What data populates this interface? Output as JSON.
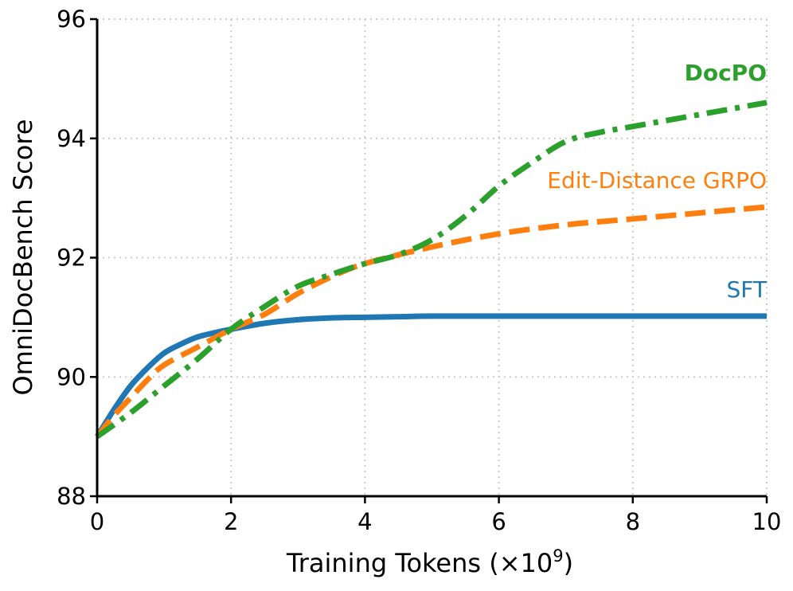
{
  "chart_data": {
    "type": "line",
    "title": "",
    "xlabel": "Training Tokens (×10",
    "xlabel_superscript": "9",
    "xlabel_suffix": ")",
    "ylabel": "OmniDocBench Score",
    "xlim": [
      0,
      10
    ],
    "ylim": [
      88,
      96
    ],
    "x_ticks": [
      0,
      2,
      4,
      6,
      8,
      10
    ],
    "y_ticks": [
      88,
      90,
      92,
      94,
      96
    ],
    "grid": true,
    "legend": "none",
    "series": [
      {
        "name": "SFT",
        "color": "#1f77b4",
        "style": "solid",
        "label_bold": false,
        "x": [
          0,
          0.25,
          0.5,
          0.75,
          1,
          1.25,
          1.5,
          1.75,
          2,
          2.5,
          3,
          3.5,
          4,
          4.5,
          5,
          6,
          7,
          8,
          9,
          10
        ],
        "y": [
          89.0,
          89.45,
          89.85,
          90.15,
          90.4,
          90.55,
          90.67,
          90.74,
          90.8,
          90.9,
          90.96,
          90.99,
          91.0,
          91.01,
          91.02,
          91.02,
          91.02,
          91.02,
          91.02,
          91.02
        ]
      },
      {
        "name": "Edit-Distance GRPO",
        "color": "#ff7f0e",
        "style": "dashed",
        "label_bold": false,
        "x": [
          0,
          0.25,
          0.5,
          0.75,
          1,
          1.5,
          2,
          2.5,
          3,
          3.5,
          4,
          5,
          6,
          7,
          8,
          9,
          10
        ],
        "y": [
          89.0,
          89.35,
          89.65,
          89.95,
          90.2,
          90.5,
          90.8,
          91.05,
          91.4,
          91.68,
          91.9,
          92.18,
          92.4,
          92.55,
          92.65,
          92.75,
          92.85
        ]
      },
      {
        "name": "DocPO",
        "color": "#2ca02c",
        "style": "dashdot",
        "label_bold": true,
        "x": [
          0,
          0.5,
          1,
          1.5,
          2,
          2.5,
          3,
          3.5,
          4,
          4.5,
          5,
          5.5,
          6,
          6.5,
          7,
          7.5,
          8,
          8.5,
          9,
          9.5,
          10
        ],
        "y": [
          89.0,
          89.4,
          89.85,
          90.3,
          90.8,
          91.18,
          91.52,
          91.72,
          91.9,
          92.05,
          92.3,
          92.7,
          93.2,
          93.6,
          93.95,
          94.1,
          94.2,
          94.3,
          94.4,
          94.5,
          94.6
        ]
      }
    ]
  }
}
